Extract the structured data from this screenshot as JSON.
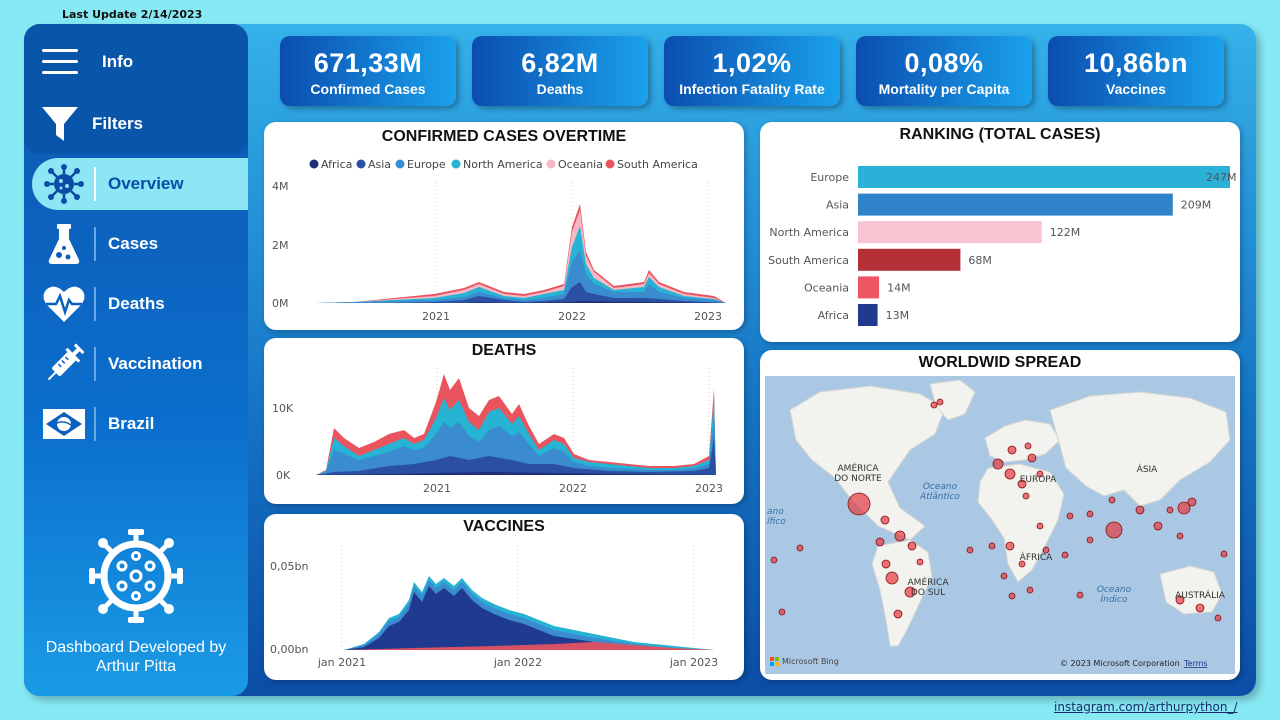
{
  "header": {
    "last_update": "Last Update 2/14/2023"
  },
  "sidebar": {
    "top_items": [
      {
        "label": "Info",
        "icon": "menu-icon"
      },
      {
        "label": "Filters",
        "icon": "filter-icon"
      }
    ],
    "nav_items": [
      {
        "label": "Overview",
        "icon": "virus-icon",
        "active": true
      },
      {
        "label": "Cases",
        "icon": "flask-icon"
      },
      {
        "label": "Deaths",
        "icon": "heartbeat-icon"
      },
      {
        "label": "Vaccination",
        "icon": "syringe-icon"
      },
      {
        "label": "Brazil",
        "icon": "brazil-flag-icon"
      }
    ],
    "developer_line1": "Dashboard Developed by",
    "developer_line2": "Arthur Pitta"
  },
  "kpis": [
    {
      "value": "671,33M",
      "label": "Confirmed Cases"
    },
    {
      "value": "6,82M",
      "label": "Deaths"
    },
    {
      "value": "1,02%",
      "label": "Infection Fatality Rate"
    },
    {
      "value": "0,08%",
      "label": "Mortality per Capita"
    },
    {
      "value": "10,86bn",
      "label": "Vaccines"
    }
  ],
  "colors": {
    "Africa": "#1f2f7a",
    "Asia": "#2b4fa3",
    "Europe": "#3a8ccf",
    "North America": "#26b3d4",
    "Oceania": "#f6b8c7",
    "South America": "#e9545e"
  },
  "cases_chart": {
    "title": "CONFIRMED CASES OVERTIME",
    "legend": [
      "Africa",
      "Asia",
      "Europe",
      "North America",
      "Oceania",
      "South America"
    ],
    "y_ticks": [
      "4M",
      "2M",
      "0M"
    ],
    "x_ticks": [
      "2021",
      "2022",
      "2023"
    ]
  },
  "deaths_chart": {
    "title": "DEATHS",
    "y_ticks": [
      "10K",
      "0K"
    ],
    "x_ticks": [
      "2021",
      "2022",
      "2023"
    ]
  },
  "vaccines_chart": {
    "title": "VACCINES",
    "y_ticks": [
      "0,05bn",
      "0,00bn"
    ],
    "x_ticks": [
      "jan 2021",
      "jan 2022",
      "jan 2023"
    ]
  },
  "chart_data": [
    {
      "type": "bar",
      "title": "RANKING (TOTAL CASES)",
      "categories": [
        "Europe",
        "Asia",
        "North America",
        "South America",
        "Oceania",
        "Africa"
      ],
      "values": [
        247,
        209,
        122,
        68,
        14,
        13
      ],
      "value_labels": [
        "247M",
        "209M",
        "122M",
        "68M",
        "14M",
        "13M"
      ],
      "colors": [
        "#2bb0d8",
        "#2f83c9",
        "#f9c3d1",
        "#b43036",
        "#ef5563",
        "#1f3a8f"
      ]
    }
  ],
  "map": {
    "title": "WORLDWID SPREAD",
    "labels": [
      {
        "text": "AMÉRICA",
        "id": "na1"
      },
      {
        "text": "DO NORTE",
        "id": "na2"
      },
      {
        "text": "Oceano",
        "id": "oa1"
      },
      {
        "text": "Atlântico",
        "id": "oa2"
      },
      {
        "text": "EUROPA",
        "id": "eu"
      },
      {
        "text": "ÁSIA",
        "id": "as"
      },
      {
        "text": "ÁFRICA",
        "id": "af"
      },
      {
        "text": "AMÉRICA",
        "id": "sa1"
      },
      {
        "text": "DO SUL",
        "id": "sa2"
      },
      {
        "text": "Oceano",
        "id": "oi1"
      },
      {
        "text": "Índico",
        "id": "oi2"
      },
      {
        "text": "AUSTRÁLIA",
        "id": "au"
      },
      {
        "text": "ano",
        "id": "op1"
      },
      {
        "text": "ífico",
        "id": "op2"
      }
    ],
    "attribution_left": "Microsoft Bing",
    "attribution_right": "© 2023 Microsoft Corporation",
    "terms": "Terms"
  },
  "footer": {
    "link": "instagram.com/arthurpython_/"
  }
}
